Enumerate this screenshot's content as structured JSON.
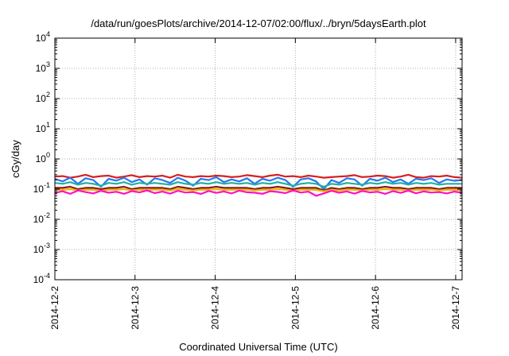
{
  "chart_data": {
    "type": "line",
    "title": "/data/run/goesPlots/archive/2014-12-07/02:00/flux/../bryn/5daysEarth.plot",
    "xlabel": "Coordinated Universal Time (UTC)",
    "ylabel": "cGy/day",
    "y_scale": "log",
    "ylim_exponents": [
      -4,
      4
    ],
    "y_tick_labels": [
      {
        "base": "10",
        "exp": "-4"
      },
      {
        "base": "10",
        "exp": "-3"
      },
      {
        "base": "10",
        "exp": "-2"
      },
      {
        "base": "10",
        "exp": "-1"
      },
      {
        "base": "10",
        "exp": "0"
      },
      {
        "base": "10",
        "exp": "1"
      },
      {
        "base": "10",
        "exp": "2"
      },
      {
        "base": "10",
        "exp": "3"
      },
      {
        "base": "10",
        "exp": "4"
      }
    ],
    "x_tick_labels": [
      "2014-12-2",
      "2014-12-3",
      "2014-12-4",
      "2014-12-5",
      "2014-12-6",
      "2014-12-7"
    ],
    "xlim_days": [
      0,
      5.08
    ],
    "grid": true,
    "series": [
      {
        "color": "#d62020",
        "level": 0.25,
        "values": [
          0.26,
          0.27,
          0.24,
          0.26,
          0.3,
          0.25,
          0.27,
          0.28,
          0.24,
          0.26,
          0.29,
          0.25,
          0.27,
          0.26,
          0.28,
          0.24,
          0.3,
          0.26,
          0.25,
          0.27,
          0.26,
          0.28,
          0.27,
          0.25,
          0.26,
          0.29,
          0.27,
          0.25,
          0.28,
          0.3,
          0.26,
          0.27,
          0.25,
          0.28,
          0.26,
          0.24,
          0.25,
          0.26,
          0.27,
          0.29,
          0.25,
          0.26,
          0.28,
          0.27,
          0.24,
          0.26,
          0.3,
          0.25,
          0.24,
          0.27,
          0.26,
          0.28,
          0.25,
          0.24
        ]
      },
      {
        "color": "#2878f0",
        "level": 0.2,
        "values": [
          0.22,
          0.18,
          0.24,
          0.15,
          0.23,
          0.2,
          0.12,
          0.22,
          0.19,
          0.24,
          0.17,
          0.21,
          0.14,
          0.23,
          0.2,
          0.16,
          0.24,
          0.19,
          0.13,
          0.22,
          0.2,
          0.25,
          0.17,
          0.21,
          0.18,
          0.23,
          0.15,
          0.22,
          0.19,
          0.24,
          0.2,
          0.12,
          0.21,
          0.23,
          0.18,
          0.1,
          0.2,
          0.16,
          0.23,
          0.21,
          0.13,
          0.22,
          0.19,
          0.24,
          0.17,
          0.21,
          0.15,
          0.22,
          0.2,
          0.23,
          0.16,
          0.21,
          0.19,
          0.2
        ]
      },
      {
        "color": "#22b0a0",
        "level": 0.15,
        "values": [
          0.16,
          0.15,
          0.17,
          0.14,
          0.16,
          0.15,
          0.13,
          0.16,
          0.15,
          0.17,
          0.14,
          0.16,
          0.15,
          0.16,
          0.15,
          0.14,
          0.17,
          0.15,
          0.14,
          0.16,
          0.15,
          0.17,
          0.15,
          0.16,
          0.15,
          0.16,
          0.14,
          0.16,
          0.15,
          0.17,
          0.15,
          0.13,
          0.15,
          0.16,
          0.15,
          0.12,
          0.15,
          0.14,
          0.16,
          0.15,
          0.14,
          0.16,
          0.15,
          0.17,
          0.15,
          0.16,
          0.14,
          0.16,
          0.15,
          0.16,
          0.14,
          0.15,
          0.15,
          0.15
        ]
      },
      {
        "color": "#8b1a1a",
        "level": 0.11,
        "values": [
          0.11,
          0.11,
          0.12,
          0.1,
          0.11,
          0.11,
          0.1,
          0.11,
          0.11,
          0.12,
          0.1,
          0.11,
          0.11,
          0.11,
          0.11,
          0.1,
          0.12,
          0.11,
          0.1,
          0.11,
          0.11,
          0.12,
          0.11,
          0.11,
          0.11,
          0.11,
          0.1,
          0.11,
          0.11,
          0.12,
          0.11,
          0.1,
          0.11,
          0.11,
          0.11,
          0.09,
          0.11,
          0.1,
          0.11,
          0.11,
          0.1,
          0.11,
          0.11,
          0.12,
          0.11,
          0.11,
          0.1,
          0.11,
          0.11,
          0.11,
          0.1,
          0.11,
          0.11,
          0.11
        ]
      },
      {
        "color": "#e8b800",
        "level": 0.095,
        "values": [
          0.095,
          0.094,
          0.1,
          0.09,
          0.096,
          0.095,
          0.088,
          0.096,
          0.095,
          0.1,
          0.09,
          0.096,
          0.094,
          0.096,
          0.095,
          0.09,
          0.1,
          0.095,
          0.09,
          0.096,
          0.095,
          0.1,
          0.094,
          0.096,
          0.095,
          0.096,
          0.09,
          0.095,
          0.094,
          0.1,
          0.095,
          0.088,
          0.095,
          0.096,
          0.094,
          0.085,
          0.095,
          0.09,
          0.096,
          0.095,
          0.09,
          0.096,
          0.094,
          0.1,
          0.095,
          0.096,
          0.09,
          0.095,
          0.094,
          0.096,
          0.09,
          0.095,
          0.094,
          0.095
        ]
      },
      {
        "color": "#ff10c8",
        "level": 0.085,
        "values": [
          0.075,
          0.085,
          0.07,
          0.09,
          0.08,
          0.072,
          0.088,
          0.076,
          0.082,
          0.07,
          0.086,
          0.078,
          0.09,
          0.074,
          0.083,
          0.071,
          0.088,
          0.077,
          0.08,
          0.069,
          0.087,
          0.075,
          0.084,
          0.072,
          0.089,
          0.079,
          0.076,
          0.07,
          0.085,
          0.081,
          0.074,
          0.09,
          0.077,
          0.083,
          0.06,
          0.072,
          0.088,
          0.076,
          0.084,
          0.071,
          0.087,
          0.078,
          0.082,
          0.07,
          0.086,
          0.075,
          0.089,
          0.073,
          0.084,
          0.077,
          0.08,
          0.072,
          0.083,
          0.076
        ]
      }
    ]
  }
}
